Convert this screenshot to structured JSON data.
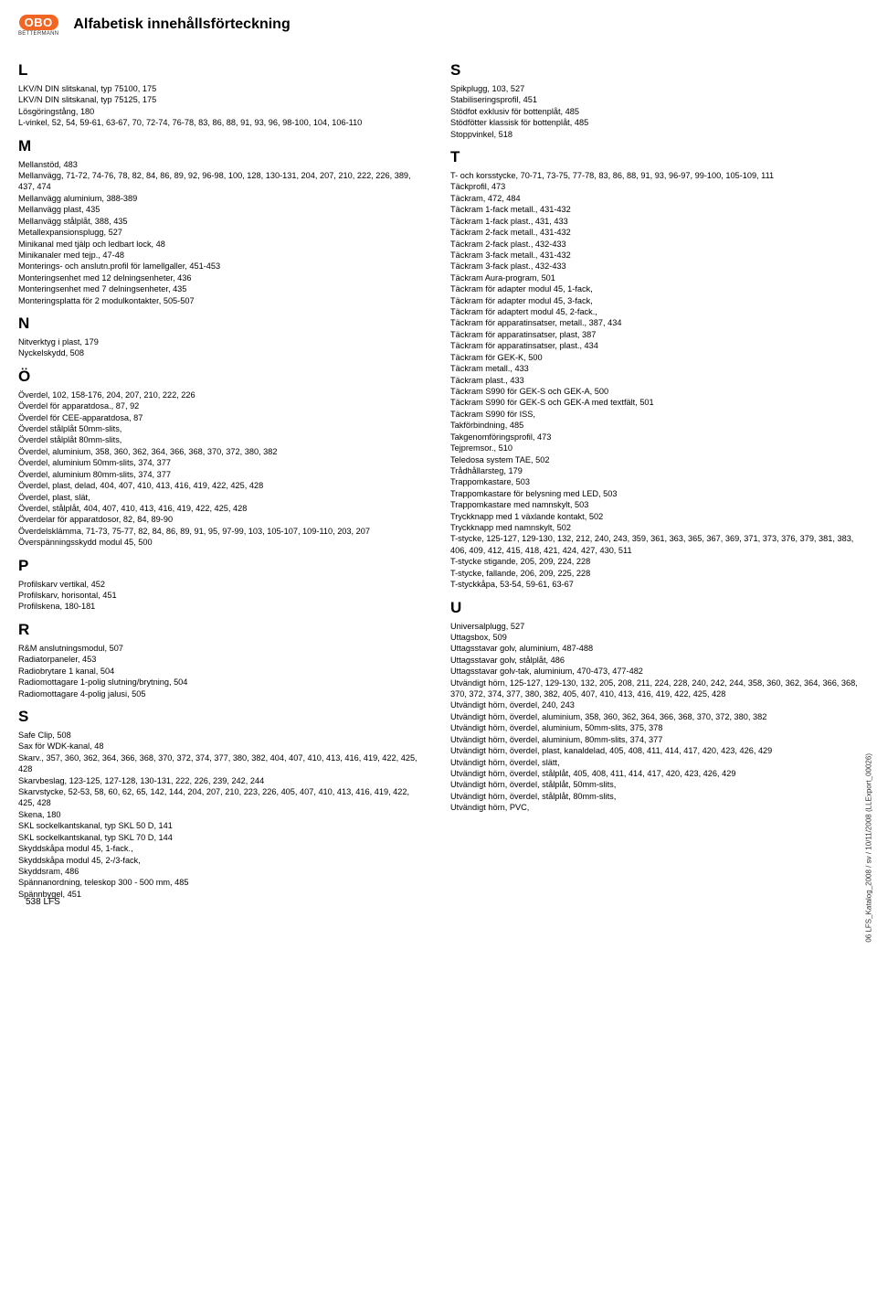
{
  "logo": {
    "brand": "OBO",
    "sub": "BETTERMANN"
  },
  "title": "Alfabetisk innehållsförteckning",
  "footerPage": "538 LFS",
  "sideCode": "06 LFS_Katalog_2008 / sv / 10/11/2008 (LLExport_00026)",
  "leftGroups": [
    {
      "letter": "L",
      "items": [
        {
          "name": "LKV/N DIN slitskanal, typ 75100,",
          "pages": "175"
        },
        {
          "name": "LKV/N DIN slitskanal, typ 75125,",
          "pages": "175"
        },
        {
          "name": "Lösgöringstång,",
          "pages": "180"
        },
        {
          "name": "L-vinkel,",
          "pages": "52, 54, 59-61, 63-67, 70, 72-74, 76-78, 83, 86, 88, 91, 93, 96, 98-100, 104, 106-110"
        }
      ]
    },
    {
      "letter": "M",
      "items": [
        {
          "name": "Mellanstöd,",
          "pages": "483"
        },
        {
          "name": "Mellanvägg,",
          "pages": "71-72, 74-76, 78, 82, 84, 86, 89, 92, 96-98, 100, 128, 130-131, 204, 207, 210, 222, 226, 389, 437, 474"
        },
        {
          "name": "Mellanvägg aluminium,",
          "pages": "388-389"
        },
        {
          "name": "Mellanvägg plast,",
          "pages": "435"
        },
        {
          "name": "Mellanvägg stålplåt,",
          "pages": "388, 435"
        },
        {
          "name": "Metallexpansionsplugg,",
          "pages": "527"
        },
        {
          "name": "Minikanal med tjälp och ledbart lock,",
          "pages": "48"
        },
        {
          "name": "Minikanaler med tejp.,",
          "pages": "47-48"
        },
        {
          "name": "Monterings- och anslutn.profil för lamellgaller,",
          "pages": "451-453"
        },
        {
          "name": "Monteringsenhet med 12 delningsenheter,",
          "pages": "436"
        },
        {
          "name": "Monteringsenhet med 7 delningsenheter,",
          "pages": "435"
        },
        {
          "name": "Monteringsplatta för 2 modulkontakter,",
          "pages": "505-507"
        }
      ]
    },
    {
      "letter": "N",
      "items": [
        {
          "name": "Nitverktyg i plast,",
          "pages": "179"
        },
        {
          "name": "Nyckelskydd,",
          "pages": "508"
        }
      ]
    },
    {
      "letter": "Ö",
      "items": [
        {
          "name": "Överdel,",
          "pages": "102, 158-176, 204, 207, 210, 222, 226"
        },
        {
          "name": "Överdel för apparatdosa.,",
          "pages": "87, 92"
        },
        {
          "name": "Överdel för CEE-apparatdosa,",
          "pages": "87"
        },
        {
          "name": "Överdel stålplåt 50mm-slits,",
          "pages": ""
        },
        {
          "name": "Överdel stålplåt 80mm-slits,",
          "pages": ""
        },
        {
          "name": "Överdel, aluminium,",
          "pages": "358, 360, 362, 364, 366, 368, 370, 372, 380, 382"
        },
        {
          "name": "Överdel, aluminium 50mm-slits,",
          "pages": "374, 377"
        },
        {
          "name": "Överdel, aluminium 80mm-slits,",
          "pages": "374, 377"
        },
        {
          "name": "Överdel, plast, delad,",
          "pages": "404, 407, 410, 413, 416, 419, 422, 425, 428"
        },
        {
          "name": "Överdel, plast, slät,",
          "pages": ""
        },
        {
          "name": "Överdel, stålplåt,",
          "pages": "404, 407, 410, 413, 416, 419, 422, 425, 428"
        },
        {
          "name": "Överdelar för apparatdosor,",
          "pages": "82, 84, 89-90"
        },
        {
          "name": "Överdelsklämma,",
          "pages": "71-73, 75-77, 82, 84, 86, 89, 91, 95, 97-99, 103, 105-107, 109-110, 203, 207"
        },
        {
          "name": "Överspänningsskydd modul 45,",
          "pages": "500"
        }
      ]
    },
    {
      "letter": "P",
      "items": [
        {
          "name": "Profilskarv vertikal,",
          "pages": "452"
        },
        {
          "name": "Profilskarv, horisontal,",
          "pages": "451"
        },
        {
          "name": "Profilskena,",
          "pages": "180-181"
        }
      ]
    },
    {
      "letter": "R",
      "items": [
        {
          "name": "R&M anslutningsmodul,",
          "pages": "507"
        },
        {
          "name": "Radiatorpaneler,",
          "pages": "453"
        },
        {
          "name": "Radiobrytare 1 kanal,",
          "pages": "504"
        },
        {
          "name": "Radiomottagare 1-polig slutning/brytning,",
          "pages": "504"
        },
        {
          "name": "Radiomottagare 4-polig jalusi,",
          "pages": "505"
        }
      ]
    },
    {
      "letter": "S",
      "items": [
        {
          "name": "Safe Clip,",
          "pages": "508"
        },
        {
          "name": "Sax för WDK-kanal,",
          "pages": "48"
        },
        {
          "name": "Skarv.,",
          "pages": "357, 360, 362, 364, 366, 368, 370, 372, 374, 377, 380, 382, 404, 407, 410, 413, 416, 419, 422, 425, 428"
        },
        {
          "name": "Skarvbeslag,",
          "pages": "123-125, 127-128, 130-131, 222, 226, 239, 242, 244"
        },
        {
          "name": "Skarvstycke,",
          "pages": "52-53, 58, 60, 62, 65, 142, 144, 204, 207, 210, 223, 226, 405, 407, 410, 413, 416, 419, 422, 425, 428"
        },
        {
          "name": "Skena,",
          "pages": "180"
        },
        {
          "name": "SKL sockelkantskanal, typ SKL 50 D,",
          "pages": "141"
        },
        {
          "name": "SKL sockelkantskanal, typ SKL 70 D,",
          "pages": "144"
        },
        {
          "name": "Skyddskåpa modul 45, 1-fack.,",
          "pages": ""
        },
        {
          "name": "Skyddskåpa modul 45, 2-/3-fack,",
          "pages": ""
        },
        {
          "name": "Skyddsram,",
          "pages": "486"
        },
        {
          "name": "Spännanordning, teleskop 300 - 500 mm,",
          "pages": "485"
        },
        {
          "name": "Spännbygel,",
          "pages": "451"
        }
      ]
    }
  ],
  "rightGroups": [
    {
      "letter": "S",
      "items": [
        {
          "name": "Spikplugg,",
          "pages": "103, 527"
        },
        {
          "name": "Stabiliseringsprofil,",
          "pages": "451"
        },
        {
          "name": "Stödfot exklusiv för bottenplåt,",
          "pages": "485"
        },
        {
          "name": "Stödfötter klassisk för bottenplåt,",
          "pages": "485"
        },
        {
          "name": "Stoppvinkel,",
          "pages": "518"
        }
      ]
    },
    {
      "letter": "T",
      "items": [
        {
          "name": "T- och korsstycke,",
          "pages": "70-71, 73-75, 77-78, 83, 86, 88, 91, 93, 96-97, 99-100, 105-109, 111"
        },
        {
          "name": "Täckprofil,",
          "pages": "473"
        },
        {
          "name": "Täckram,",
          "pages": "472, 484"
        },
        {
          "name": "Täckram 1-fack metall.,",
          "pages": "431-432"
        },
        {
          "name": "Täckram 1-fack plast.,",
          "pages": "431, 433"
        },
        {
          "name": "Täckram 2-fack metall.,",
          "pages": "431-432"
        },
        {
          "name": "Täckram 2-fack plast.,",
          "pages": "432-433"
        },
        {
          "name": "Täckram 3-fack metall.,",
          "pages": "431-432"
        },
        {
          "name": "Täckram 3-fack plast.,",
          "pages": "432-433"
        },
        {
          "name": "Täckram Aura-program,",
          "pages": "501"
        },
        {
          "name": "Täckram för adapter modul 45, 1-fack,",
          "pages": ""
        },
        {
          "name": "Täckram för adapter modul 45, 3-fack,",
          "pages": ""
        },
        {
          "name": "Täckram för adaptert modul 45, 2-fack.,",
          "pages": ""
        },
        {
          "name": "Täckram för apparatinsatser, metall.,",
          "pages": "387, 434"
        },
        {
          "name": "Täckram för apparatinsatser, plast,",
          "pages": "387"
        },
        {
          "name": "Täckram för apparatinsatser, plast.,",
          "pages": "434"
        },
        {
          "name": "Täckram för GEK-K,",
          "pages": "500"
        },
        {
          "name": "Täckram metall.,",
          "pages": "433"
        },
        {
          "name": "Täckram plast.,",
          "pages": "433"
        },
        {
          "name": "Täckram S990 för GEK-S och GEK-A,",
          "pages": "500"
        },
        {
          "name": "Täckram S990 för GEK-S och GEK-A med textfält,",
          "pages": "501"
        },
        {
          "name": "Täckram S990 för ISS,",
          "pages": ""
        },
        {
          "name": "Takförbindning,",
          "pages": "485"
        },
        {
          "name": "Takgenomföringsprofil,",
          "pages": "473"
        },
        {
          "name": "Tejpremsor.,",
          "pages": "510"
        },
        {
          "name": "Teledosa system TAE,",
          "pages": "502"
        },
        {
          "name": "Trådhållarsteg,",
          "pages": "179"
        },
        {
          "name": "Trappomkastare,",
          "pages": "503"
        },
        {
          "name": "Trappomkastare för belysning med LED,",
          "pages": "503"
        },
        {
          "name": "Trappomkastare med namnskylt,",
          "pages": "503"
        },
        {
          "name": "Tryckknapp med 1 växlande kontakt,",
          "pages": "502"
        },
        {
          "name": "Tryckknapp med namnskylt,",
          "pages": "502"
        },
        {
          "name": "T-stycke,",
          "pages": "125-127, 129-130, 132, 212, 240, 243, 359, 361, 363, 365, 367, 369, 371, 373, 376, 379, 381, 383, 406, 409, 412, 415, 418, 421, 424, 427, 430, 511"
        },
        {
          "name": "T-stycke stigande,",
          "pages": "205, 209, 224, 228"
        },
        {
          "name": "T-stycke, fallande,",
          "pages": "206, 209, 225, 228"
        },
        {
          "name": "T-styckkåpa,",
          "pages": "53-54, 59-61, 63-67"
        }
      ]
    },
    {
      "letter": "U",
      "items": [
        {
          "name": "Universalplugg,",
          "pages": "527"
        },
        {
          "name": "Uttagsbox,",
          "pages": "509"
        },
        {
          "name": "Uttagsstavar golv, aluminium,",
          "pages": "487-488"
        },
        {
          "name": "Uttagsstavar golv, stålplåt,",
          "pages": "486"
        },
        {
          "name": "Uttagsstavar golv-tak, aluminium,",
          "pages": "470-473, 477-482"
        },
        {
          "name": "Utvändigt hörn,",
          "pages": "125-127, 129-130, 132, 205, 208, 211, 224, 228, 240, 242, 244, 358, 360, 362, 364, 366, 368, 370, 372, 374, 377, 380, 382, 405, 407, 410, 413, 416, 419, 422, 425, 428"
        },
        {
          "name": "Utvändigt hörn, överdel,",
          "pages": "240, 243"
        },
        {
          "name": "Utvändigt hörn, överdel, aluminium,",
          "pages": "358, 360, 362, 364, 366, 368, 370, 372, 380, 382"
        },
        {
          "name": "Utvändigt hörn, överdel, aluminium, 50mm-slits,",
          "pages": "375, 378"
        },
        {
          "name": "Utvändigt hörn, överdel, aluminium, 80mm-slits,",
          "pages": "374, 377"
        },
        {
          "name": "Utvändigt hörn, överdel, plast, kanaldelad,",
          "pages": "405, 408, 411, 414, 417, 420, 423, 426, 429"
        },
        {
          "name": "Utvändigt hörn, överdel, slätt,",
          "pages": ""
        },
        {
          "name": "Utvändigt hörn, överdel, stålplåt,",
          "pages": "405, 408, 411, 414, 417, 420, 423, 426, 429"
        },
        {
          "name": "Utvändigt hörn, överdel, stålplåt, 50mm-slits,",
          "pages": ""
        },
        {
          "name": "Utvändigt hörn, överdel, stålplåt, 80mm-slits,",
          "pages": ""
        },
        {
          "name": "Utvändigt hörn, PVC,",
          "pages": ""
        }
      ]
    }
  ]
}
